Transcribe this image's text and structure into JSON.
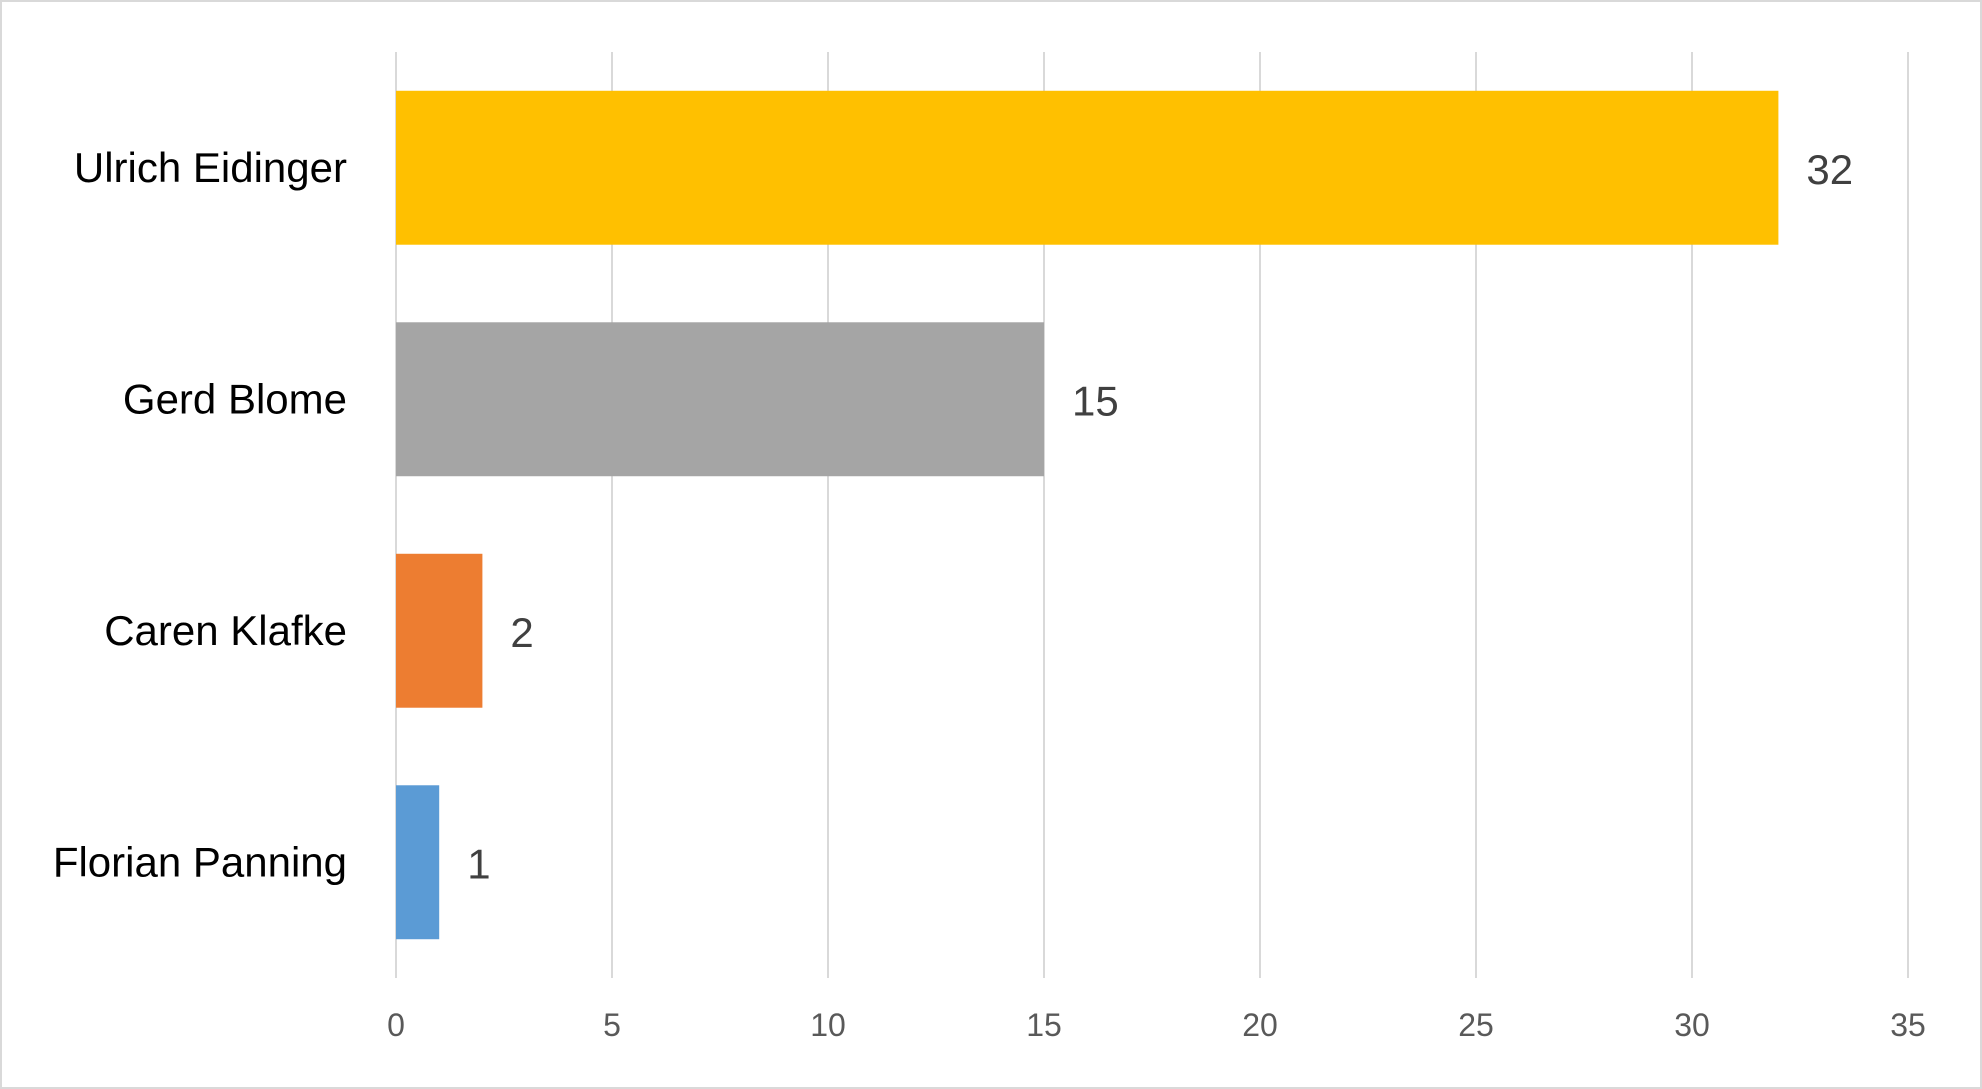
{
  "chart_data": {
    "type": "bar",
    "orientation": "horizontal",
    "categories": [
      "Ulrich Eidinger",
      "Gerd Blome",
      "Caren Klafke",
      "Florian Panning"
    ],
    "values": [
      32,
      15,
      2,
      1
    ],
    "bar_colors": [
      "#FFC000",
      "#A5A5A5",
      "#ED7D31",
      "#5B9BD5"
    ],
    "data_labels": [
      "32",
      "15",
      "2",
      "1"
    ],
    "x_ticks": [
      "0",
      "5",
      "10",
      "15",
      "20",
      "25",
      "30",
      "35"
    ],
    "xlim": [
      0,
      35
    ],
    "grid": "vertical",
    "legend": "none",
    "title": "",
    "xlabel": "",
    "ylabel": ""
  }
}
